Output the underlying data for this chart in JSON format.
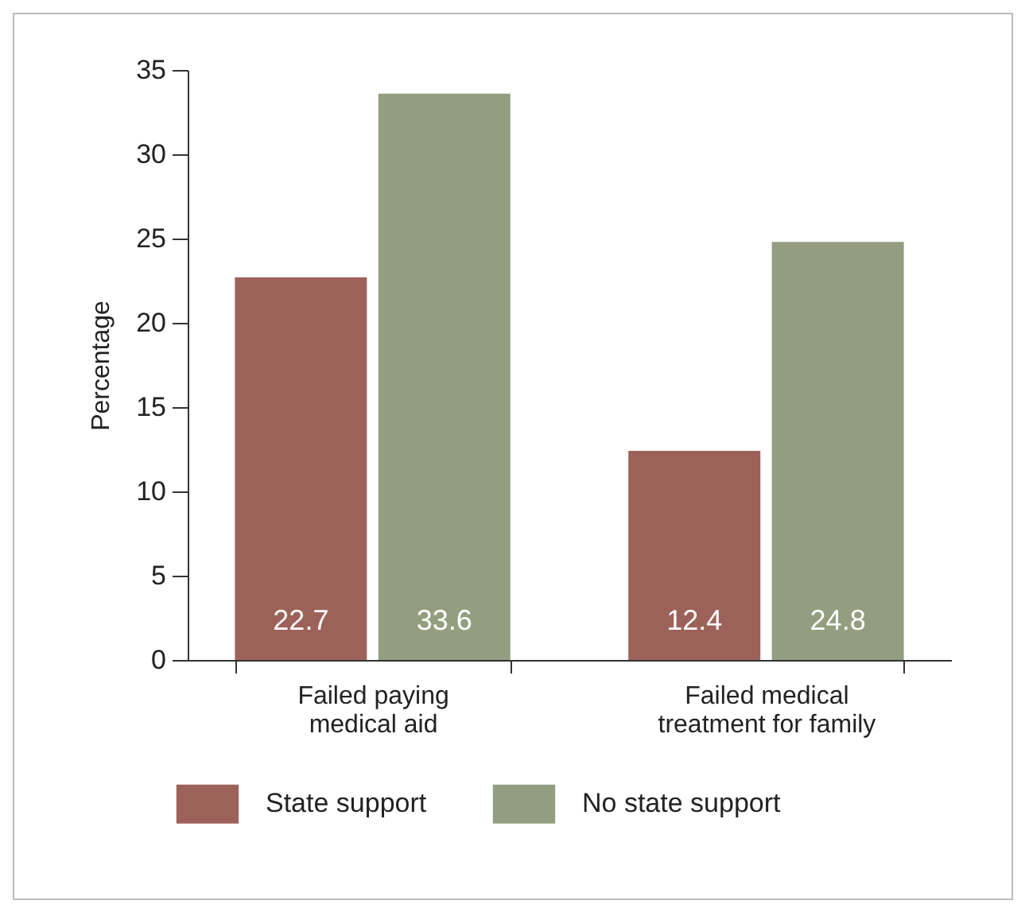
{
  "chart_data": {
    "type": "bar",
    "ylabel": "Percentage",
    "categories": [
      "Failed paying medical aid",
      "Failed medical treatment for family"
    ],
    "series": [
      {
        "name": "State support",
        "color": "#9c625a",
        "values": [
          22.7,
          12.4
        ]
      },
      {
        "name": "No state support",
        "color": "#939e80",
        "values": [
          33.6,
          24.8
        ]
      }
    ],
    "ylim": [
      0,
      35
    ],
    "yticks": [
      0,
      5,
      10,
      15,
      20,
      25,
      30,
      35
    ],
    "grid": false,
    "legend": "bottom",
    "data_labels": true
  }
}
